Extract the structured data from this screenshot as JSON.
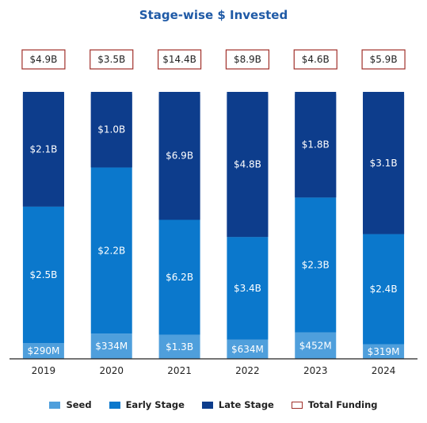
{
  "chart_data": {
    "type": "bar",
    "stacked": true,
    "title": "Stage-wise $ Invested",
    "categories": [
      "2019",
      "2020",
      "2021",
      "2022",
      "2023",
      "2024"
    ],
    "series": [
      {
        "name": "Seed",
        "color": "#4f9fdc",
        "values": [
          0.29,
          0.334,
          1.3,
          0.634,
          0.452,
          0.319
        ],
        "labels": [
          "$290M",
          "$334M",
          "$1.3B",
          "$634M",
          "$452M",
          "$319M"
        ]
      },
      {
        "name": "Early Stage",
        "color": "#0b78cc",
        "values": [
          2.5,
          2.2,
          6.2,
          3.4,
          2.3,
          2.4
        ],
        "labels": [
          "$2.5B",
          "$2.2B",
          "$6.2B",
          "$3.4B",
          "$2.3B",
          "$2.4B"
        ]
      },
      {
        "name": "Late Stage",
        "color": "#0d3d8c",
        "values": [
          2.1,
          1.0,
          6.9,
          4.8,
          1.8,
          3.1
        ],
        "labels": [
          "$2.1B",
          "$1.0B",
          "$6.9B",
          "$4.8B",
          "$1.8B",
          "$3.1B"
        ]
      }
    ],
    "total_funding": {
      "name": "Total Funding",
      "border_color": "#a0302a",
      "values": [
        4.9,
        3.5,
        14.4,
        8.9,
        4.6,
        5.9
      ],
      "labels": [
        "$4.9B",
        "$3.5B",
        "$14.4B",
        "$8.9B",
        "$4.6B",
        "$5.9B"
      ]
    },
    "normalized_100_percent": true,
    "legend_position": "bottom",
    "grid": false
  }
}
